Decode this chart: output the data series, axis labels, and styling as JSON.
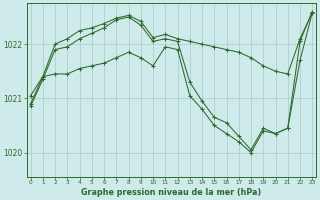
{
  "title": "Graphe pression niveau de la mer (hPa)",
  "background_color": "#ceeaea",
  "plot_bg_color": "#ceeaea",
  "line_color": "#2d6a2d",
  "grid_color": "#b0d0d0",
  "ylabel_color": "#2d6a2d",
  "ylim": [
    1019.55,
    1022.75
  ],
  "xlim": [
    -0.3,
    23.3
  ],
  "yticks": [
    1020,
    1021,
    1022
  ],
  "xticks": [
    0,
    1,
    2,
    3,
    4,
    5,
    6,
    7,
    8,
    9,
    10,
    11,
    12,
    13,
    14,
    15,
    16,
    17,
    18,
    19,
    20,
    21,
    22,
    23
  ],
  "series": [
    {
      "x": [
        0,
        1,
        2,
        3,
        4,
        5,
        6,
        7,
        8,
        9,
        10,
        11,
        12,
        13,
        14,
        15,
        16,
        17,
        18,
        19,
        20,
        21,
        22,
        23
      ],
      "y": [
        1020.85,
        1021.35,
        1021.9,
        1021.95,
        1022.1,
        1022.2,
        1022.3,
        1022.45,
        1022.5,
        1022.35,
        1022.05,
        1022.1,
        1022.05,
        1021.3,
        1020.95,
        1020.65,
        1020.55,
        1020.3,
        1020.05,
        1020.45,
        1020.35,
        1020.45,
        1022.05,
        1022.6
      ]
    },
    {
      "x": [
        0,
        1,
        2,
        3,
        4,
        5,
        6,
        7,
        8,
        9,
        10,
        11,
        12,
        13,
        14,
        15,
        16,
        17,
        18,
        19,
        20,
        21,
        22,
        23
      ],
      "y": [
        1021.05,
        1021.4,
        1022.0,
        1022.1,
        1022.25,
        1022.3,
        1022.38,
        1022.48,
        1022.53,
        1022.42,
        1022.12,
        1022.18,
        1022.1,
        1022.05,
        1022.0,
        1021.95,
        1021.9,
        1021.85,
        1021.75,
        1021.6,
        1021.5,
        1021.45,
        1022.1,
        1022.58
      ]
    },
    {
      "x": [
        0,
        1,
        2,
        3,
        4,
        5,
        6,
        7,
        8,
        9,
        10,
        11,
        12,
        13,
        14,
        15,
        16,
        17,
        18,
        19,
        20,
        21,
        22,
        23
      ],
      "y": [
        1020.9,
        1021.4,
        1021.45,
        1021.45,
        1021.55,
        1021.6,
        1021.65,
        1021.75,
        1021.85,
        1021.75,
        1021.6,
        1021.95,
        1021.9,
        1021.05,
        1020.8,
        1020.5,
        1020.35,
        1020.2,
        1020.0,
        1020.4,
        1020.35,
        1020.45,
        1021.7,
        1022.58
      ]
    }
  ]
}
